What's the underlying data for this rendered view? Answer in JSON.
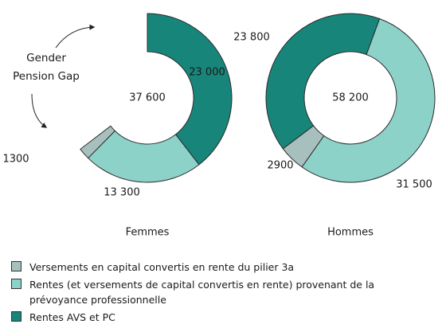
{
  "chart_data": [
    {
      "type": "pie",
      "title": "Femmes",
      "center": "37 600",
      "values": [
        1300,
        13300,
        23000
      ],
      "value_labels": [
        "1300",
        "13 300",
        "23 000"
      ],
      "annotation": [
        "Gender",
        "Pension Gap"
      ]
    },
    {
      "type": "pie",
      "title": "Hommes",
      "center": "58 200",
      "values": [
        2900,
        31500,
        23800
      ],
      "value_labels": [
        "2900",
        "31 500",
        "23 800"
      ]
    }
  ],
  "legend": {
    "categories": [
      "Versements en capital convertis en rente du pilier 3a",
      "Rentes (et versements de capital convertis en rente) provenant de la prévoyance professionnelle",
      "Rentes AVS et PC"
    ],
    "colors": [
      "#a7c0bd",
      "#8dd2c8",
      "#178579"
    ]
  }
}
